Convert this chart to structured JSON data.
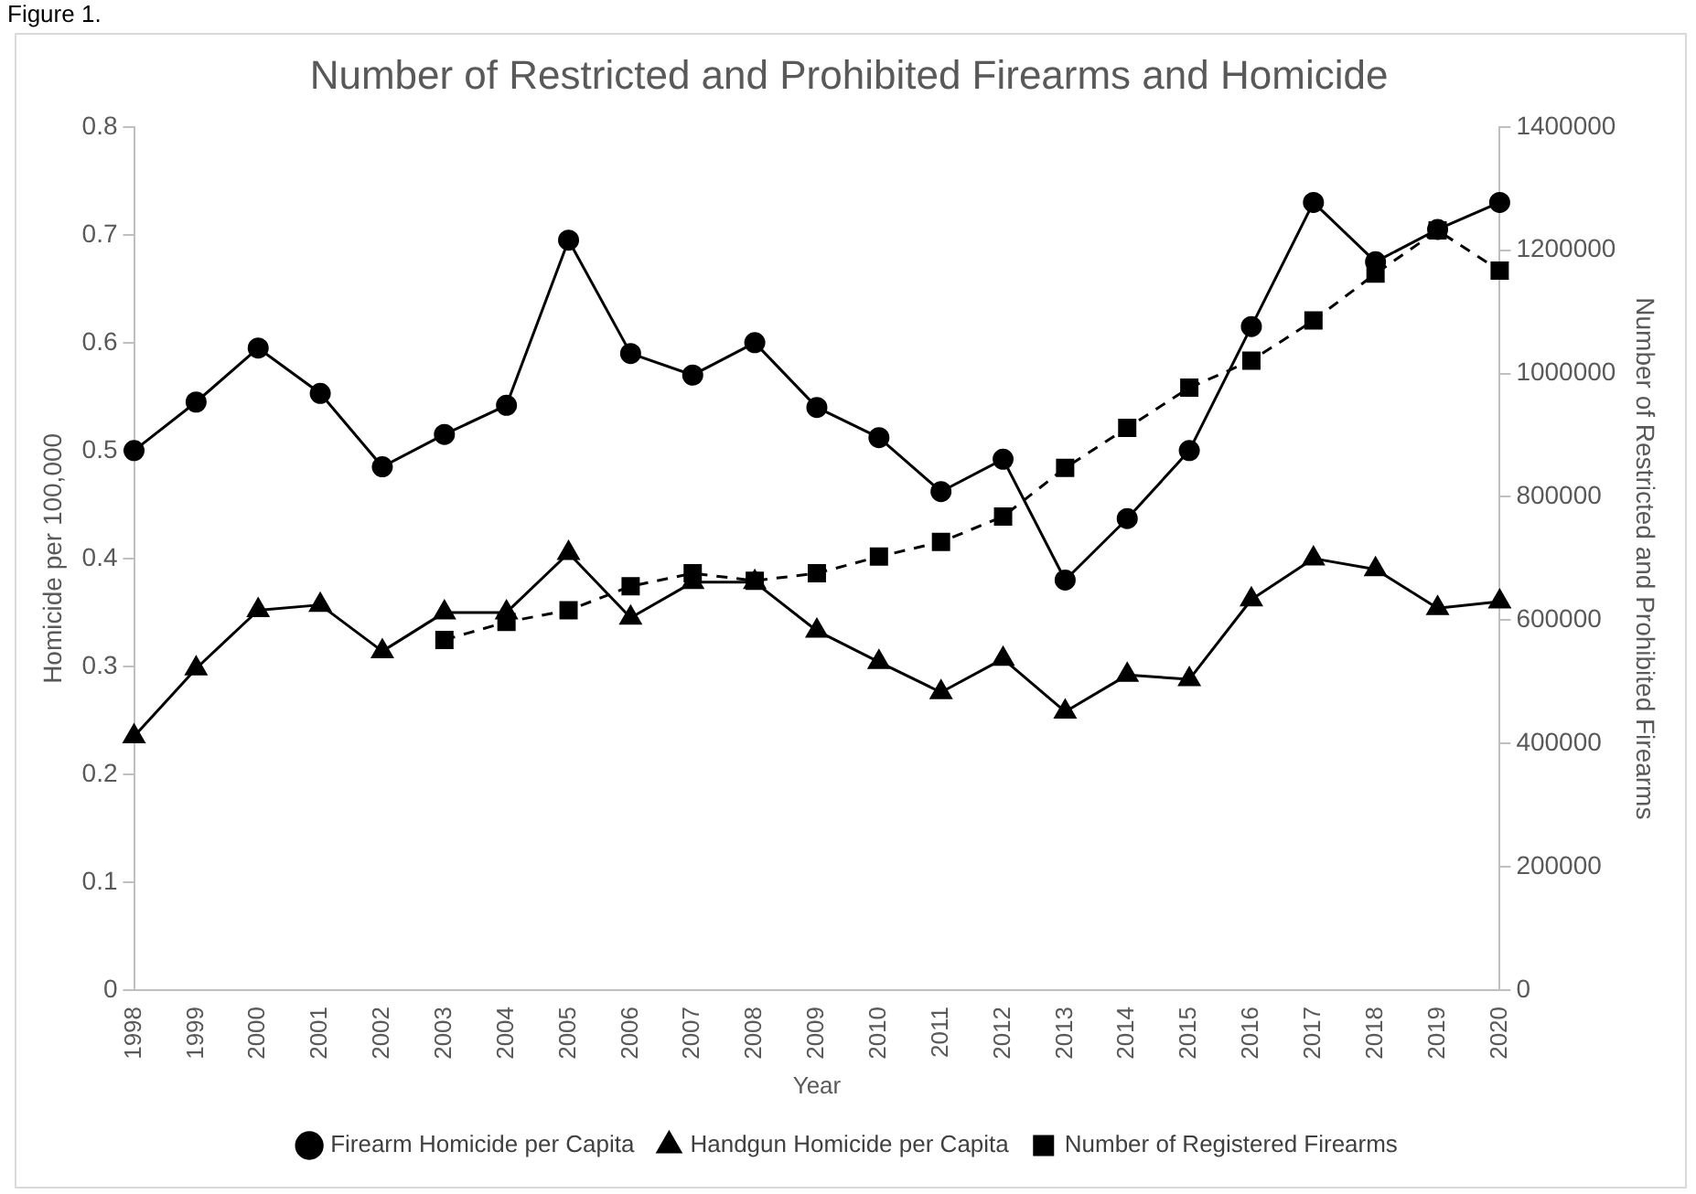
{
  "chart_data": {
    "type": "line",
    "title": "Number of Restricted and Prohibited Firearms and Homicide",
    "xlabel": "Year",
    "ylabel": "Homicide per 100,000",
    "y2label": "Number of Restricted and Prohibited Firearms",
    "annotations": [
      "Figure 1."
    ],
    "categories": [
      "1998",
      "1999",
      "2000",
      "2001",
      "2002",
      "2003",
      "2004",
      "2005",
      "2006",
      "2007",
      "2008",
      "2009",
      "2010",
      "2011",
      "2012",
      "2013",
      "2014",
      "2015",
      "2016",
      "2017",
      "2018",
      "2019",
      "2020"
    ],
    "series": [
      {
        "name": "Firearm Homicide per Capita",
        "color": "#000000",
        "marker": "circle",
        "line_style": "solid",
        "values": [
          0.5,
          0.545,
          0.595,
          0.553,
          0.485,
          0.515,
          0.542,
          0.695,
          0.59,
          0.57,
          0.6,
          0.54,
          0.512,
          0.462,
          0.492,
          0.38,
          0.437,
          0.5,
          0.615,
          0.73,
          0.675,
          0.705,
          0.73
        ]
      },
      {
        "name": "Handgun Homicide per Capita",
        "color": "#000000",
        "marker": "triangle",
        "line_style": "solid",
        "values": [
          0.235,
          0.298,
          0.352,
          0.357,
          0.314,
          0.35,
          0.35,
          0.405,
          0.345,
          0.378,
          0.378,
          0.333,
          0.304,
          0.276,
          0.307,
          0.258,
          0.292,
          0.288,
          0.362,
          0.4,
          0.39,
          0.354,
          0.36
        ]
      },
      {
        "name": "Number of Registered Firearms",
        "color": "#000000",
        "marker": "square",
        "line_style": "dashed",
        "axis": "y2",
        "values": [
          null,
          null,
          null,
          null,
          null,
          568000,
          597000,
          616000,
          655000,
          676000,
          664000,
          676000,
          703000,
          727000,
          768000,
          847000,
          912000,
          977000,
          1021000,
          1086000,
          1162000,
          1232000,
          1167000
        ]
      }
    ],
    "ylim": [
      0,
      0.8
    ],
    "yticks": [
      0,
      0.1,
      0.2,
      0.3,
      0.4,
      0.5,
      0.6,
      0.7,
      0.8
    ],
    "y2lim": [
      0,
      1400000
    ],
    "y2ticks": [
      0,
      200000,
      400000,
      600000,
      800000,
      1000000,
      1200000,
      1400000
    ],
    "grid": false,
    "legend": "bottom"
  }
}
